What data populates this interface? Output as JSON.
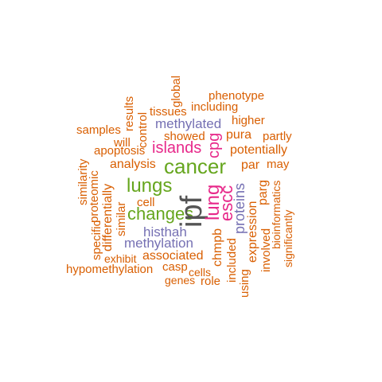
{
  "colors": {
    "orange": "#d95f02",
    "purple": "#7570b3",
    "pink": "#e7298a",
    "green": "#66a61e",
    "dark": "#555555"
  },
  "words": [
    {
      "text": "ipf",
      "color": "dark"
    },
    {
      "text": "cancer",
      "color": "green"
    },
    {
      "text": "lungs",
      "color": "green"
    },
    {
      "text": "changes",
      "color": "green"
    },
    {
      "text": "lung",
      "color": "pink"
    },
    {
      "text": "islands",
      "color": "pink"
    },
    {
      "text": "cpg",
      "color": "pink"
    },
    {
      "text": "escc",
      "color": "pink"
    },
    {
      "text": "methylated",
      "color": "purple"
    },
    {
      "text": "methylation",
      "color": "purple"
    },
    {
      "text": "histhah",
      "color": "purple"
    },
    {
      "text": "proteins",
      "color": "purple"
    },
    {
      "text": "phenotype",
      "color": "orange"
    },
    {
      "text": "including",
      "color": "orange"
    },
    {
      "text": "global",
      "color": "orange"
    },
    {
      "text": "tissues",
      "color": "orange"
    },
    {
      "text": "results",
      "color": "orange"
    },
    {
      "text": "control",
      "color": "orange"
    },
    {
      "text": "higher",
      "color": "orange"
    },
    {
      "text": "samples",
      "color": "orange"
    },
    {
      "text": "showed",
      "color": "orange"
    },
    {
      "text": "pura",
      "color": "orange"
    },
    {
      "text": "partly",
      "color": "orange"
    },
    {
      "text": "will",
      "color": "orange"
    },
    {
      "text": "apoptosis",
      "color": "orange"
    },
    {
      "text": "potentially",
      "color": "orange"
    },
    {
      "text": "analysis",
      "color": "orange"
    },
    {
      "text": "par",
      "color": "orange"
    },
    {
      "text": "may",
      "color": "orange"
    },
    {
      "text": "similarity",
      "color": "orange"
    },
    {
      "text": "proteomic",
      "color": "orange"
    },
    {
      "text": "differentially",
      "color": "orange"
    },
    {
      "text": "similar",
      "color": "orange"
    },
    {
      "text": "cell",
      "color": "orange"
    },
    {
      "text": "specific",
      "color": "orange"
    },
    {
      "text": "parg",
      "color": "orange"
    },
    {
      "text": "bioinformatics",
      "color": "orange"
    },
    {
      "text": "significantly",
      "color": "orange"
    },
    {
      "text": "expression",
      "color": "orange"
    },
    {
      "text": "involved",
      "color": "orange"
    },
    {
      "text": "chmpb",
      "color": "orange"
    },
    {
      "text": "included",
      "color": "orange"
    },
    {
      "text": "using",
      "color": "orange"
    },
    {
      "text": "exhibit",
      "color": "orange"
    },
    {
      "text": "associated",
      "color": "orange"
    },
    {
      "text": "hypomethylation",
      "color": "orange"
    },
    {
      "text": "casp",
      "color": "orange"
    },
    {
      "text": "cells",
      "color": "orange"
    },
    {
      "text": "genes",
      "color": "orange"
    },
    {
      "text": "role",
      "color": "orange"
    }
  ]
}
